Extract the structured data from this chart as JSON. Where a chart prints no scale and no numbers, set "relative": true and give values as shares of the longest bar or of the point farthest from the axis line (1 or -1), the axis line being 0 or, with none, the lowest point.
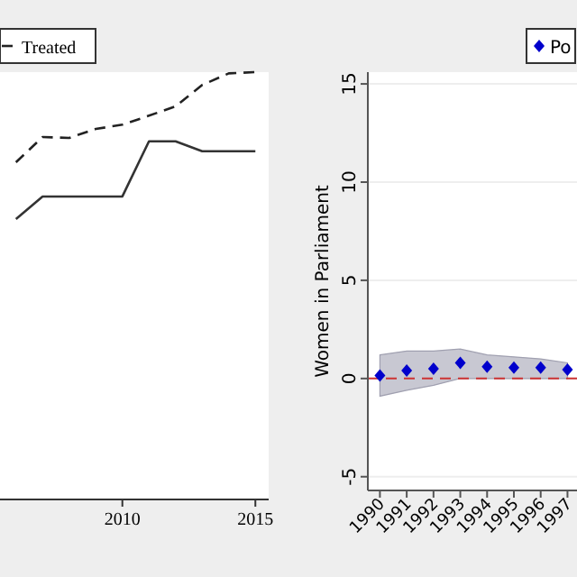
{
  "chart_data": [
    {
      "type": "line",
      "relative": true,
      "x": [
        2006,
        2007,
        2008,
        2009,
        2010,
        2011,
        2012,
        2013,
        2014,
        2015
      ],
      "xlim": [
        2005.4,
        2015.5
      ],
      "xticks": [
        2010,
        2015
      ],
      "legend": "top left",
      "series": [
        {
          "color": "#333333",
          "line_style": "solid",
          "values": [
            0.656,
            0.709,
            0.709,
            0.709,
            0.709,
            0.838,
            0.838,
            0.815,
            0.815,
            0.815
          ]
        },
        {
          "name": "Treated",
          "color": "#222222",
          "line_style": "dashed",
          "values": [
            0.789,
            0.848,
            0.846,
            0.867,
            0.877,
            0.898,
            0.92,
            0.97,
            0.997,
            1
          ]
        }
      ]
    },
    {
      "type": "scatter",
      "ylabel": "Women in Parliament",
      "categories": [
        "1990",
        "1991",
        "1992",
        "1993",
        "1994",
        "1995",
        "1996",
        "1997"
      ],
      "ylim": [
        -5.7,
        15.6
      ],
      "yticks": [
        -5,
        0,
        5,
        10,
        15
      ],
      "grid": "y",
      "legend": "top right",
      "marker": "diamond",
      "ref_lines": [
        {
          "axis": "y",
          "value": 0,
          "color": "#cc3333",
          "line_style": "dashed"
        }
      ],
      "series": [
        {
          "name": "Po",
          "color": "#0000cc",
          "values": [
            0.15,
            0.4,
            0.5,
            0.8,
            0.6,
            0.55,
            0.55,
            0.45
          ],
          "lower": [
            -0.9,
            -0.6,
            -0.35,
            0,
            0,
            0,
            0,
            0
          ],
          "upper": [
            1.2,
            1.4,
            1.4,
            1.5,
            1.2,
            1.1,
            1.0,
            0.8
          ]
        }
      ]
    }
  ]
}
